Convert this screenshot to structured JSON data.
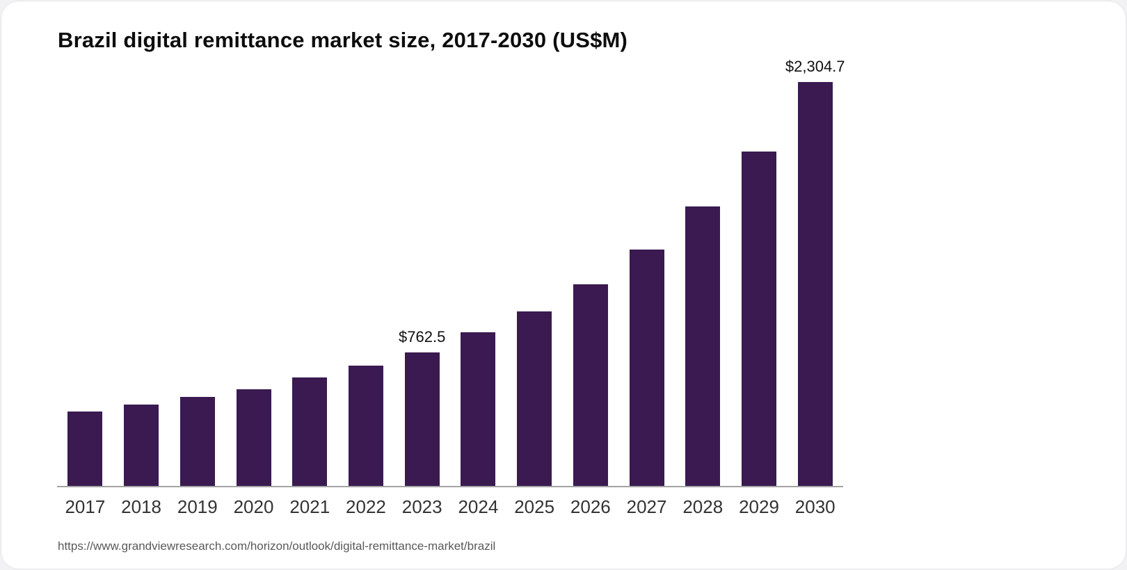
{
  "page": {
    "source_url": "https://www.grandviewresearch.com/horizon/outlook/digital-remittance-market/brazil"
  },
  "chart_data": {
    "type": "bar",
    "title": "Brazil digital remittance market size, 2017-2030 (US$M)",
    "categories": [
      "2017",
      "2018",
      "2019",
      "2020",
      "2021",
      "2022",
      "2023",
      "2024",
      "2025",
      "2026",
      "2027",
      "2028",
      "2029",
      "2030"
    ],
    "values": [
      425,
      463,
      507,
      553,
      617,
      688,
      762.5,
      875,
      997,
      1152,
      1349,
      1594,
      1908,
      2304.7
    ],
    "data_labels": [
      "",
      "",
      "",
      "",
      "",
      "",
      "$762.5",
      "",
      "",
      "",
      "",
      "",
      "",
      "$2,304.7"
    ],
    "bar_color": "#3a1a50",
    "xlabel": "",
    "ylabel": "",
    "ylim": [
      0,
      2400
    ],
    "grid": false,
    "legend": false
  }
}
